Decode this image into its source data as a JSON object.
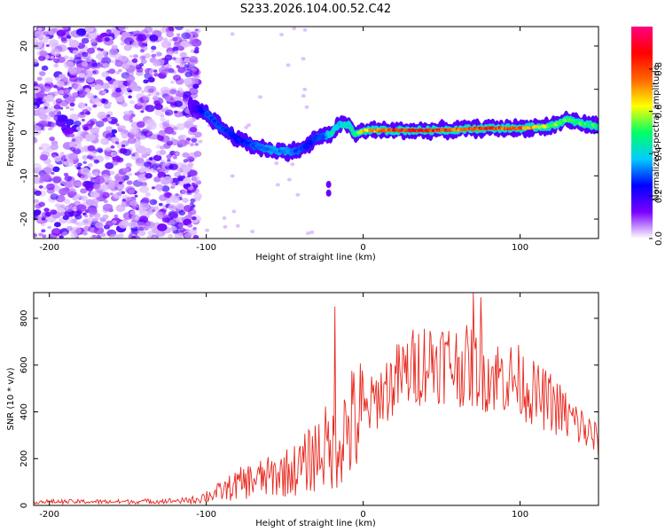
{
  "chart_data": [
    {
      "type": "heatmap",
      "title": "S233.2026.104.00.52.C42",
      "xlabel": "Height of straight line (km)",
      "ylabel": "Frequency (Hz)",
      "xlim": [
        -210,
        150
      ],
      "ylim": [
        -24.5,
        24.5
      ],
      "xticks": [
        -200,
        -100,
        0,
        100
      ],
      "yticks": [
        -20,
        -10,
        0,
        10,
        20
      ],
      "ridge": {
        "x": [
          -110,
          -100,
          -90,
          -80,
          -70,
          -60,
          -50,
          -40,
          -35,
          -30,
          -25,
          -20,
          -15,
          -10,
          -5,
          0,
          20,
          40,
          60,
          80,
          100,
          120,
          130,
          140,
          150
        ],
        "frequency": [
          6,
          4.5,
          1,
          -1.5,
          -3,
          -4,
          -4.5,
          -4,
          -3,
          -1,
          -1,
          0,
          2,
          2,
          -0.5,
          0.5,
          0.5,
          0.5,
          0.7,
          1,
          1,
          1.5,
          3,
          2,
          1.5
        ],
        "amplitude": [
          0.15,
          0.3,
          0.3,
          0.25,
          0.3,
          0.35,
          0.35,
          0.3,
          0.25,
          0.3,
          0.3,
          0.45,
          0.4,
          0.45,
          0.5,
          0.7,
          0.85,
          0.9,
          0.8,
          0.85,
          0.8,
          0.6,
          0.55,
          0.55,
          0.5
        ]
      },
      "noise_region": [
        -210,
        -105
      ],
      "colorbar": {
        "label": "Normalized spectral amplitude",
        "range": [
          0,
          1
        ],
        "ticks": [
          "0.0",
          "0.2",
          "0.4",
          "0.6",
          "0.8"
        ],
        "tick_values": [
          0,
          0.2,
          0.4,
          0.6,
          0.8
        ],
        "colors": [
          "#ffffff",
          "#7a00ff",
          "#0000ff",
          "#00ccff",
          "#00ff66",
          "#ffff00",
          "#ff6600",
          "#ff0000",
          "#ff0080"
        ]
      }
    },
    {
      "type": "line",
      "xlabel": "Height of straight line (km)",
      "ylabel": "SNR (10 * v/v)",
      "xlim": [
        -210,
        150
      ],
      "ylim": [
        0,
        910
      ],
      "xticks": [
        -200,
        -100,
        0,
        100
      ],
      "yticks": [
        0,
        200,
        400,
        600,
        800
      ],
      "color": "#e8281e",
      "envelope": {
        "x": [
          -210,
          -150,
          -110,
          -100,
          -90,
          -80,
          -70,
          -60,
          -50,
          -40,
          -30,
          -25,
          -20,
          -15,
          -10,
          0,
          10,
          20,
          30,
          40,
          50,
          60,
          70,
          80,
          90,
          100,
          110,
          120,
          130,
          140,
          150
        ],
        "y": [
          15,
          15,
          20,
          40,
          60,
          90,
          110,
          120,
          140,
          160,
          220,
          250,
          230,
          290,
          330,
          380,
          470,
          530,
          580,
          620,
          620,
          600,
          590,
          560,
          550,
          530,
          470,
          440,
          380,
          330,
          270
        ]
      },
      "spikes": [
        {
          "x": -18,
          "y": 850
        },
        {
          "x": 70,
          "y": 910
        },
        {
          "x": 75,
          "y": 890
        }
      ]
    }
  ]
}
